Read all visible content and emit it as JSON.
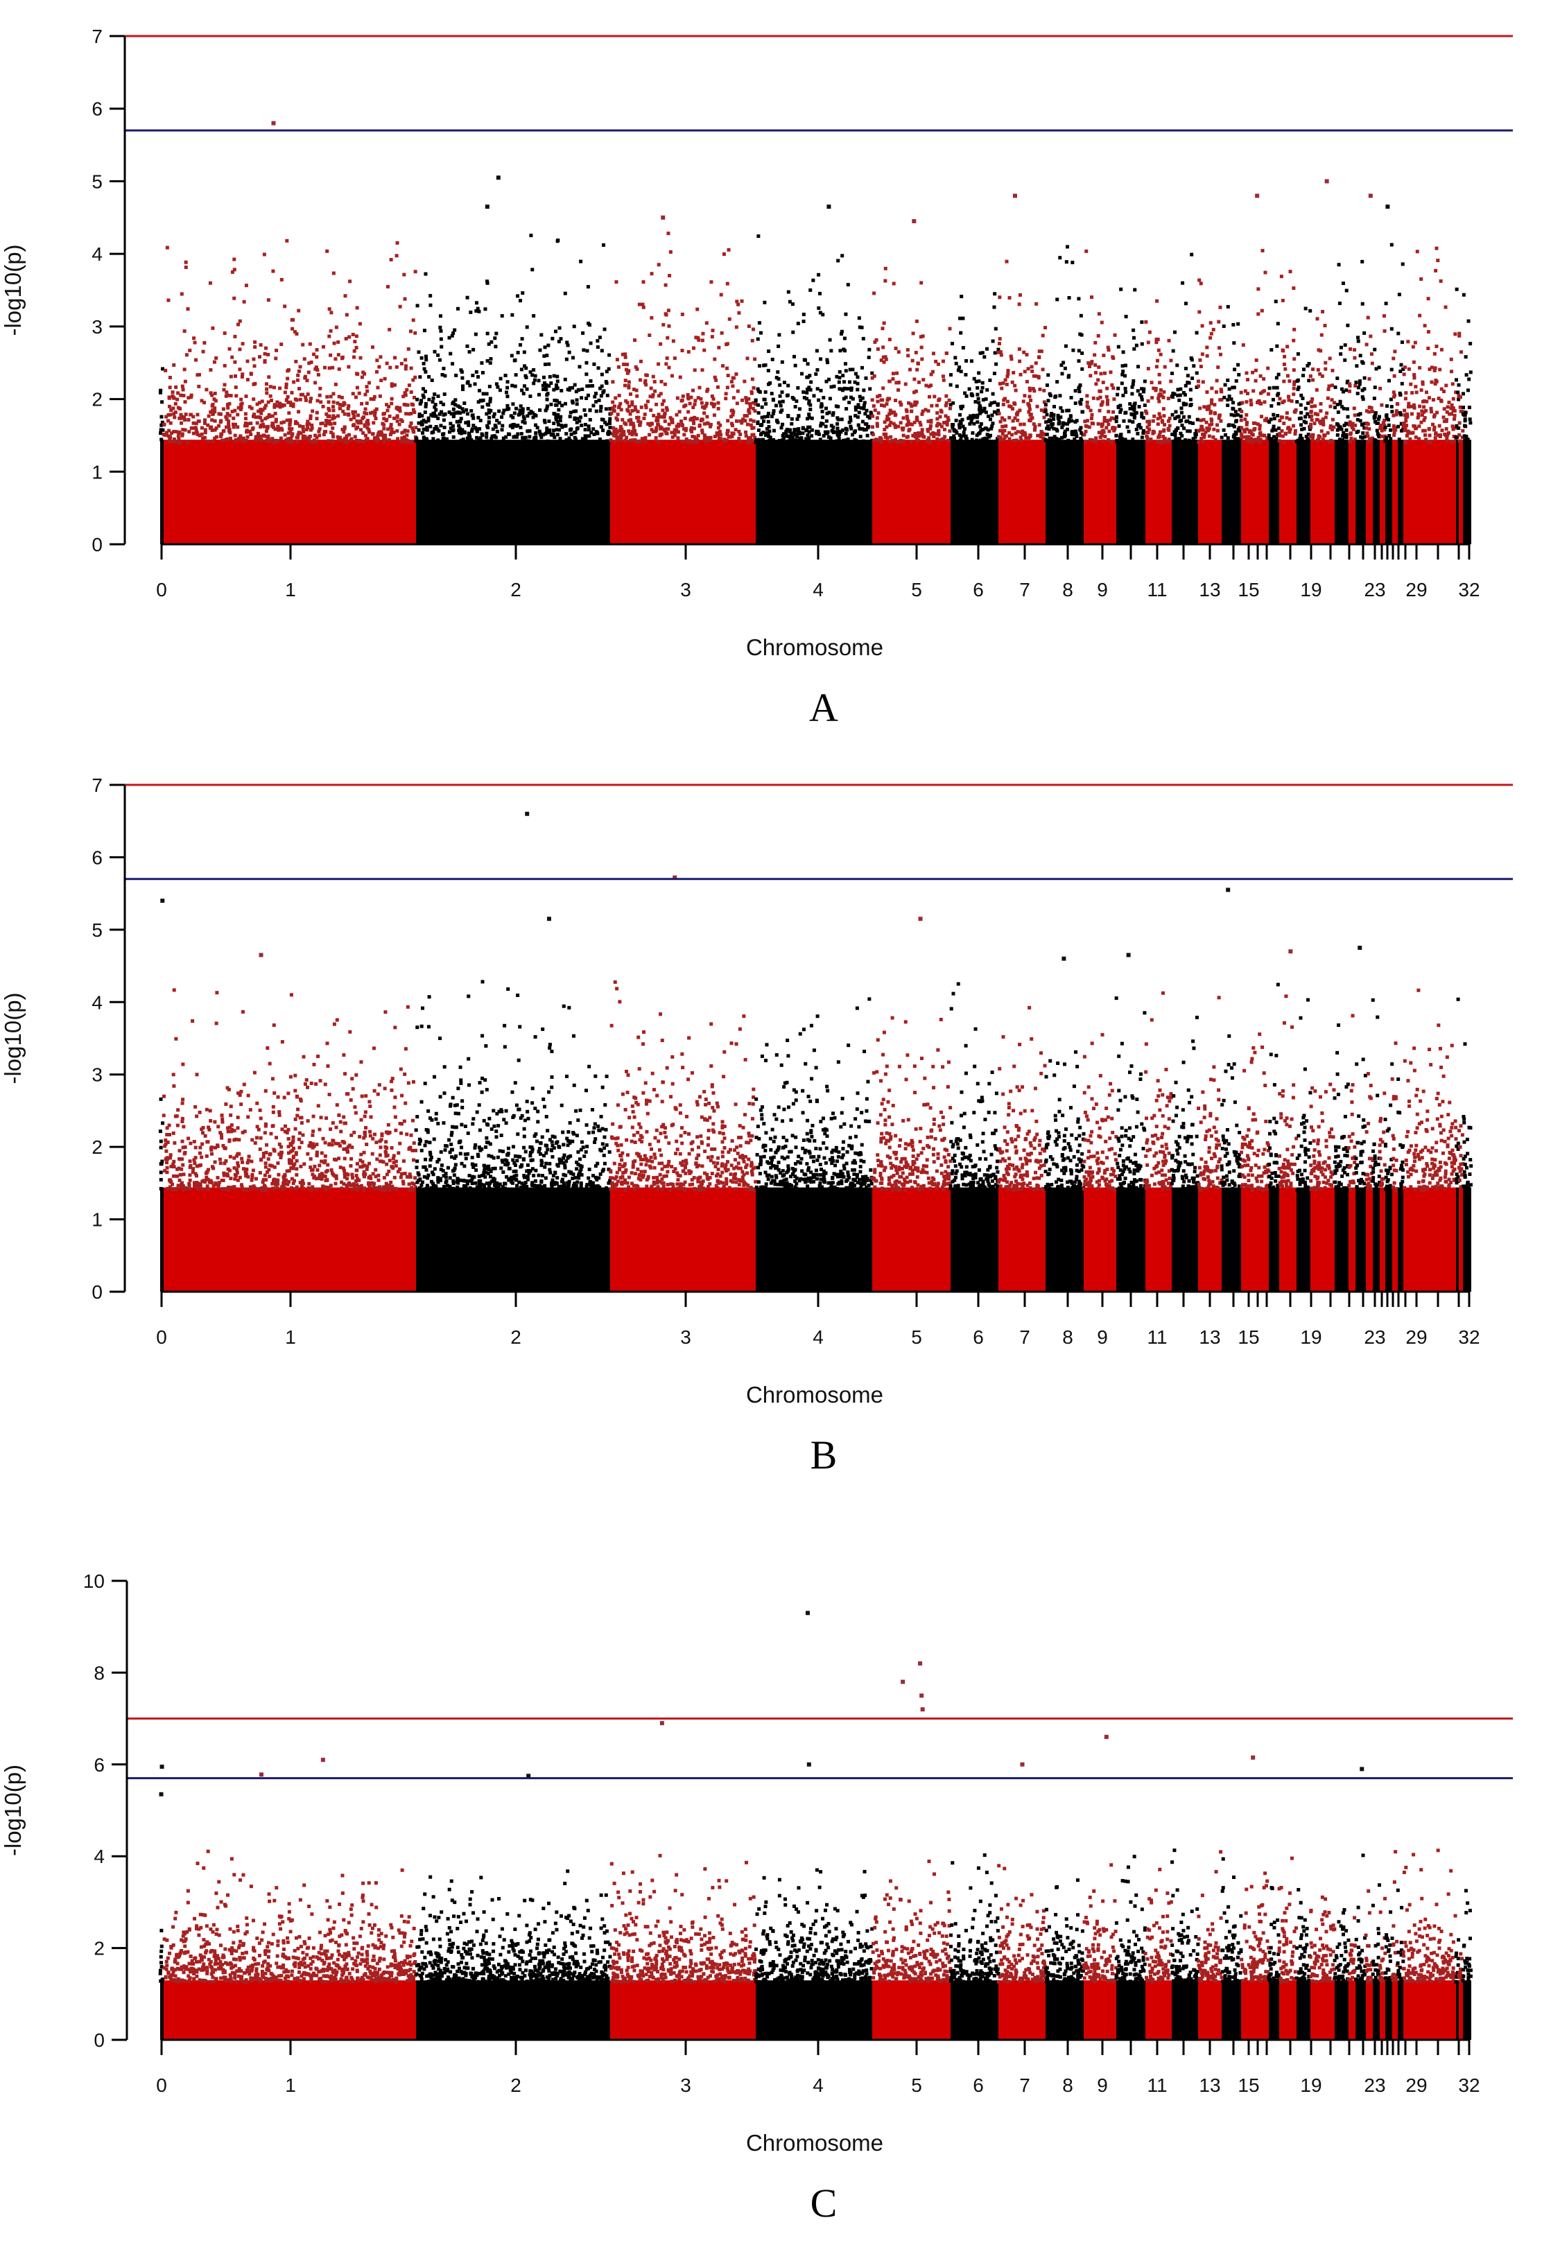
{
  "figure": {
    "panel_letters": [
      "A",
      "B",
      "C"
    ]
  },
  "colors": {
    "odd_chr": "#d40000",
    "even_chr": "#000000",
    "threshold_upper": "#c01818",
    "threshold_lower": "#1a1a6e",
    "axis": "#000000"
  },
  "chart_data": [
    {
      "type": "scatter",
      "subtype": "manhattan",
      "panel": "A",
      "title": "",
      "xlabel": "Chromosome",
      "ylabel": "-log10(p)",
      "ylim": [
        0,
        7
      ],
      "yticks": [
        0,
        1,
        2,
        3,
        4,
        5,
        6,
        7
      ],
      "xtick_labels": [
        "0",
        "1",
        "2",
        "3",
        "4",
        "5",
        "6",
        "7",
        "8",
        "9",
        "11",
        "13",
        "15",
        "19",
        "23",
        "29",
        "32"
      ],
      "thresholds": [
        {
          "value": 7.0,
          "color": "red"
        },
        {
          "value": 5.7,
          "color": "blue"
        }
      ],
      "grid": false,
      "legend": "none",
      "chromosome_order": [
        "0",
        "1",
        "2",
        "3",
        "4",
        "5",
        "6",
        "7",
        "8",
        "9",
        "10",
        "11",
        "12",
        "13",
        "14",
        "15",
        "16",
        "17",
        "18",
        "19",
        "20",
        "21",
        "22",
        "23",
        "24",
        "25",
        "26",
        "27",
        "28",
        "29",
        "30",
        "31",
        "32"
      ],
      "top_points": [
        {
          "chr": "1",
          "value": 5.8
        },
        {
          "chr": "2",
          "value": 5.05
        },
        {
          "chr": "2",
          "value": 4.65
        },
        {
          "chr": "4",
          "value": 4.65
        },
        {
          "chr": "3",
          "value": 4.5
        },
        {
          "chr": "5",
          "value": 4.45
        },
        {
          "chr": "7",
          "value": 4.8
        },
        {
          "chr": "15",
          "value": 4.8
        },
        {
          "chr": "19",
          "value": 5.0
        },
        {
          "chr": "23",
          "value": 4.8
        },
        {
          "chr": "26",
          "value": 4.65
        }
      ],
      "bulk_level": 2.0
    },
    {
      "type": "scatter",
      "subtype": "manhattan",
      "panel": "B",
      "title": "",
      "xlabel": "Chromosome",
      "ylabel": "-log10(p)",
      "ylim": [
        0,
        7
      ],
      "yticks": [
        0,
        1,
        2,
        3,
        4,
        5,
        6,
        7
      ],
      "xtick_labels": [
        "0",
        "1",
        "2",
        "3",
        "4",
        "5",
        "6",
        "7",
        "8",
        "9",
        "11",
        "13",
        "15",
        "19",
        "23",
        "29",
        "32"
      ],
      "thresholds": [
        {
          "value": 7.0,
          "color": "red"
        },
        {
          "value": 5.7,
          "color": "blue"
        }
      ],
      "grid": false,
      "legend": "none",
      "top_points": [
        {
          "chr": "0",
          "value": 5.4
        },
        {
          "chr": "2",
          "value": 6.6
        },
        {
          "chr": "2",
          "value": 5.15
        },
        {
          "chr": "3",
          "value": 5.72
        },
        {
          "chr": "5",
          "value": 5.15
        },
        {
          "chr": "14",
          "value": 5.55
        },
        {
          "chr": "10",
          "value": 4.65
        },
        {
          "chr": "8",
          "value": 4.6
        },
        {
          "chr": "17",
          "value": 4.7
        },
        {
          "chr": "22",
          "value": 4.75
        },
        {
          "chr": "1",
          "value": 4.65
        }
      ],
      "bulk_level": 2.0
    },
    {
      "type": "scatter",
      "subtype": "manhattan",
      "panel": "C",
      "title": "",
      "xlabel": "Chromosome",
      "ylabel": "-log10(p)",
      "ylim": [
        0,
        10
      ],
      "yticks": [
        0,
        2,
        4,
        6,
        8,
        10
      ],
      "xtick_labels": [
        "0",
        "1",
        "2",
        "3",
        "4",
        "5",
        "6",
        "7",
        "8",
        "9",
        "11",
        "13",
        "15",
        "19",
        "23",
        "29",
        "32"
      ],
      "thresholds": [
        {
          "value": 7.0,
          "color": "red"
        },
        {
          "value": 5.7,
          "color": "navy"
        }
      ],
      "grid": false,
      "legend": "none",
      "top_points": [
        {
          "chr": "4",
          "value": 9.3
        },
        {
          "chr": "5",
          "value": 8.2
        },
        {
          "chr": "5",
          "value": 7.8
        },
        {
          "chr": "5",
          "value": 7.5
        },
        {
          "chr": "5",
          "value": 7.2
        },
        {
          "chr": "3",
          "value": 6.9
        },
        {
          "chr": "9",
          "value": 6.6
        },
        {
          "chr": "1",
          "value": 6.1
        },
        {
          "chr": "15",
          "value": 6.15
        },
        {
          "chr": "7",
          "value": 6.0
        },
        {
          "chr": "0",
          "value": 5.95
        },
        {
          "chr": "4",
          "value": 6.0
        },
        {
          "chr": "22",
          "value": 5.9
        },
        {
          "chr": "1",
          "value": 5.78
        },
        {
          "chr": "2",
          "value": 5.75
        },
        {
          "chr": "0",
          "value": 5.35
        }
      ],
      "bulk_level": 1.8
    }
  ]
}
